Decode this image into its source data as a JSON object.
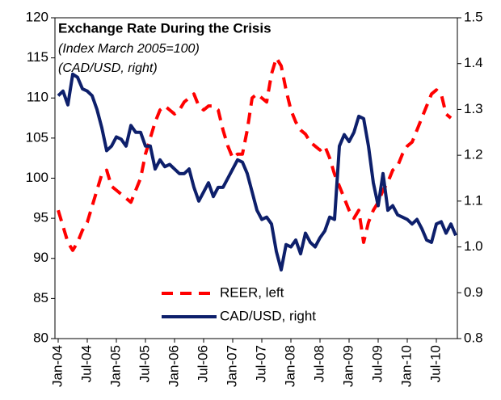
{
  "chart_data": {
    "type": "line",
    "title": "Exchange Rate During the Crisis",
    "subtitle": [
      "(Index March 2005=100)",
      "(CAD/USD, right)"
    ],
    "categories": [
      "Jan-04",
      null,
      null,
      null,
      null,
      null,
      "Jul-04",
      null,
      null,
      null,
      null,
      null,
      "Jan-05",
      null,
      null,
      null,
      null,
      null,
      "Jul-05",
      null,
      null,
      null,
      null,
      null,
      "Jan-06",
      null,
      null,
      null,
      null,
      null,
      "Jul-06",
      null,
      null,
      null,
      null,
      null,
      "Jan-07",
      null,
      null,
      null,
      null,
      null,
      "Jul-07",
      null,
      null,
      null,
      null,
      null,
      "Jan-08",
      null,
      null,
      null,
      null,
      null,
      "Jul-08",
      null,
      null,
      null,
      null,
      null,
      "Jan-09",
      null,
      null,
      null,
      null,
      null,
      "Jul-09",
      null,
      null,
      null,
      null,
      null,
      "Jan-10",
      null,
      null,
      null,
      null,
      null,
      "Jul-10",
      null,
      null,
      null,
      null
    ],
    "series": [
      {
        "name": "REER, left",
        "color": "#ff0000",
        "dashed": true,
        "values": [
          96,
          94,
          92,
          91,
          92,
          93.5,
          94.5,
          96.5,
          98.5,
          100.5,
          101,
          99,
          98.5,
          98,
          97.5,
          97,
          98.5,
          100,
          103,
          105,
          107,
          108.5,
          109,
          108.5,
          108,
          108.5,
          109.5,
          110,
          110.5,
          109,
          108.5,
          109,
          109,
          108.5,
          106,
          104,
          102.5,
          103,
          103,
          106,
          110,
          110.5,
          110,
          109.5,
          113,
          115,
          114,
          111,
          108.5,
          107,
          106,
          105.5,
          104.5,
          104,
          103.5,
          104,
          102.5,
          100.5,
          99,
          97.5,
          96,
          95,
          96,
          92,
          94.5,
          96,
          97,
          98.5,
          99.5,
          101,
          101.5,
          103,
          104,
          104.5,
          106,
          107.5,
          109,
          110.5,
          111,
          110.5,
          108,
          107.5,
          null
        ]
      },
      {
        "name": "CAD/USD, right",
        "color": "#0d1f6b",
        "axis": "y2",
        "values": [
          1.33,
          1.34,
          1.31,
          1.377,
          1.37,
          1.345,
          1.34,
          1.33,
          1.3,
          1.26,
          1.21,
          1.22,
          1.24,
          1.235,
          1.22,
          1.265,
          1.25,
          1.25,
          1.22,
          1.22,
          1.17,
          1.19,
          1.175,
          1.18,
          1.17,
          1.16,
          1.16,
          1.17,
          1.13,
          1.1,
          1.12,
          1.14,
          1.11,
          1.13,
          1.13,
          1.15,
          1.17,
          1.19,
          1.185,
          1.16,
          1.12,
          1.08,
          1.06,
          1.065,
          1.05,
          0.99,
          0.95,
          1.005,
          1.0,
          1.015,
          0.985,
          1.03,
          1.01,
          1.0,
          1.02,
          1.035,
          1.065,
          1.06,
          1.22,
          1.245,
          1.23,
          1.25,
          1.285,
          1.28,
          1.22,
          1.14,
          1.09,
          1.16,
          1.08,
          1.09,
          1.07,
          1.065,
          1.06,
          1.05,
          1.06,
          1.04,
          1.015,
          1.01,
          1.05,
          1.055,
          1.03,
          1.05,
          1.025
        ]
      }
    ],
    "ylim": [
      80,
      120
    ],
    "yticks": [
      80,
      85,
      90,
      95,
      100,
      105,
      110,
      115,
      120
    ],
    "y2lim": [
      0.8,
      1.5
    ],
    "y2ticks": [
      0.8,
      0.9,
      {
        "value": 1,
        "label": "1.0"
      },
      1.1,
      1.2,
      1.3,
      1.4,
      1.5
    ],
    "legend": "bottom"
  }
}
